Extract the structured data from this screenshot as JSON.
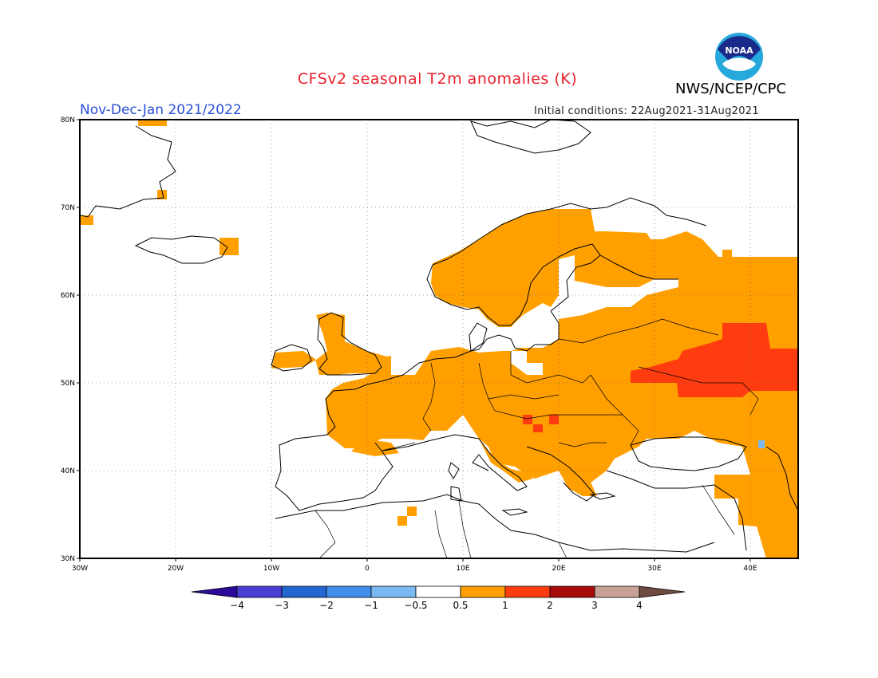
{
  "header": {
    "title": "CFSv2 seasonal T2m anomalies (K)",
    "agency": "NWS/NCEP/CPC",
    "season": "Nov-Dec-Jan 2021/2022",
    "initial_conditions": "Initial conditions: 22Aug2021-31Aug2021",
    "logo_text": "NOAA"
  },
  "map": {
    "lon_range": [
      -30,
      45
    ],
    "lat_range": [
      30,
      80
    ],
    "lat_ticks": [
      "30N",
      "40N",
      "50N",
      "60N",
      "70N",
      "80N"
    ],
    "lon_ticks": [
      "30W",
      "20W",
      "10W",
      "0",
      "10E",
      "20E",
      "30E",
      "40E"
    ]
  },
  "colorbar": {
    "levels": [
      "-4",
      "-3",
      "-2",
      "-1",
      "-0.5",
      "0.5",
      "1",
      "2",
      "3",
      "4"
    ],
    "colors": [
      "#2a0a9a",
      "#4a3ed4",
      "#2266d0",
      "#3f8fe8",
      "#79b8f0",
      "#ffffff",
      "#ffa000",
      "#ff3c10",
      "#a80a0a",
      "#c8a096",
      "#6e4a40"
    ]
  },
  "colors": {
    "warm_1": "#ffa000",
    "warm_2": "#ff3c10",
    "cool": "#79b8f0",
    "title": "#e8202a",
    "season": "#2a4fd8"
  }
}
